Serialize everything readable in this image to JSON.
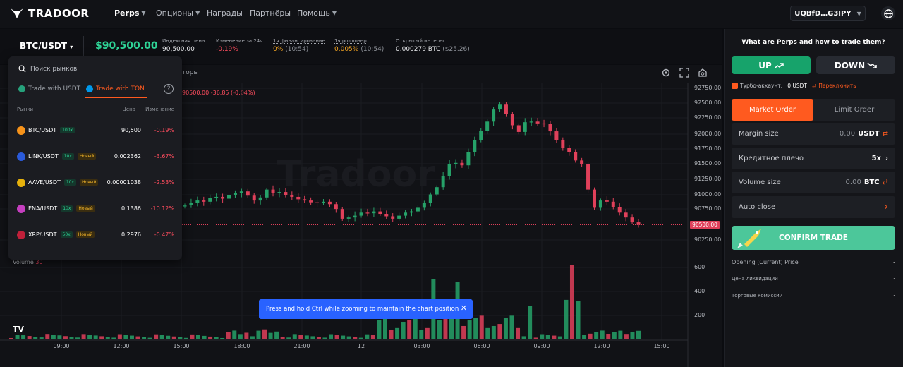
{
  "app": {
    "logo_text": "TRADOOR"
  },
  "nav": {
    "items": [
      {
        "label": "Perps",
        "has_caret": true,
        "active": true
      },
      {
        "label": "Опционы",
        "has_caret": true
      },
      {
        "label": "Награды"
      },
      {
        "label": "Партнёры"
      },
      {
        "label": "Помощь",
        "has_caret": true
      }
    ],
    "wallet": "UQBfD…G3IPY"
  },
  "ticker": {
    "pair": "BTC/USDT",
    "price": "$90,500.00",
    "stats": [
      {
        "label": "Индексная цена",
        "value": "90,500.00",
        "color": "#e8e9ec"
      },
      {
        "label": "Изменение за 24ч",
        "value": "-0.19%",
        "color": "#ff4d5e"
      },
      {
        "label": "1ч финансирование",
        "value": "0%",
        "extra": "(10:54)",
        "color": "#f5a623"
      },
      {
        "label": "1ч ролловер",
        "value": "0.005%",
        "extra": "(10:54)",
        "color": "#f5a623"
      },
      {
        "label": "Открытый интерес",
        "value": "0.000279 BTC",
        "extra": "($25.26)",
        "color": "#e8e9ec"
      }
    ]
  },
  "market_dropdown": {
    "search_placeholder": "Поиск рынков",
    "tabs": [
      "Trade with USDT",
      "Trade with TON"
    ],
    "active_tab": 1,
    "headers": {
      "market": "Рынки",
      "price": "Цена",
      "change": "Изменение"
    },
    "rows": [
      {
        "symbol": "BTC/USDT",
        "leverage": "100x",
        "new": "",
        "price": "90,500",
        "change": "-0.19%",
        "icon_color": "#f7931a"
      },
      {
        "symbol": "LINK/USDT",
        "leverage": "10x",
        "new": "Новый",
        "price": "0.002362",
        "change": "-3.67%",
        "icon_color": "#2a5ada"
      },
      {
        "symbol": "AAVE/USDT",
        "leverage": "10x",
        "new": "Новый",
        "price": "0.00001038",
        "change": "-2.53%",
        "icon_color": "#e6b10c"
      },
      {
        "symbol": "ENA/USDT",
        "leverage": "10x",
        "new": "Новый",
        "price": "0.1386",
        "change": "-10.12%",
        "icon_color": "#c63fc0"
      },
      {
        "symbol": "XRP/USDT",
        "leverage": "50x",
        "new": "Новый",
        "price": "0.2976",
        "change": "-0.47%",
        "icon_color": "#c0203a"
      }
    ]
  },
  "chart": {
    "tab_fragment": "торы",
    "ohlc_text": "90500.00  -36.85 (-0.04%)",
    "watermark": "Tradoor",
    "volume_label": "Volume",
    "volume_value": "30",
    "price_ticks": [
      "92750.00",
      "92500.00",
      "92250.00",
      "92000.00",
      "91750.00",
      "91500.00",
      "91250.00",
      "91000.00",
      "90750.00",
      "90250.00"
    ],
    "last_price_tag": "90500.00",
    "volume_ticks": [
      "600",
      "400",
      "200"
    ],
    "time_ticks": [
      "09:00",
      "12:00",
      "15:00",
      "18:00",
      "21:00",
      "12",
      "03:00",
      "06:00",
      "09:00",
      "12:00",
      "15:00"
    ],
    "toast": "Press and hold Ctrl while zooming to maintain the chart position",
    "tv_logo": "TV"
  },
  "chart_data": {
    "type": "candlestick",
    "title": "BTC/USDT",
    "price_range": [
      90100,
      92800
    ],
    "close_series": [
      90820,
      90860,
      90900,
      90880,
      90940,
      90960,
      90930,
      90990,
      91020,
      91050,
      90980,
      90900,
      90950,
      91080,
      91020,
      91040,
      90990,
      90960,
      90920,
      90900,
      90870,
      90860,
      90880,
      90840,
      90760,
      90600,
      90620,
      90650,
      90700,
      90690,
      90720,
      90680,
      90640,
      90600,
      90650,
      90700,
      90720,
      90780,
      90860,
      91000,
      91120,
      91300,
      91500,
      91520,
      91480,
      91700,
      91900,
      92050,
      92200,
      92400,
      92480,
      92330,
      92140,
      92030,
      92190,
      92200,
      92170,
      92160,
      92040,
      91890,
      91770,
      91700,
      91560,
      91500,
      91080,
      90780,
      90900,
      90880,
      90790,
      90700,
      90620,
      90540,
      90500
    ],
    "volume_range": [
      0,
      700
    ]
  },
  "panel": {
    "help_title": "What are Perps and how to trade them?",
    "up": "UP",
    "down": "DOWN",
    "turbo_label": "Турбо-аккаунт:",
    "turbo_value": "0 USDT",
    "turbo_switch": "Переключить",
    "order_tabs": [
      "Market Order",
      "Limit Order"
    ],
    "margin_label": "Margin size",
    "margin_value": "0.00",
    "margin_unit": "USDT",
    "leverage_label": "Кредитное плечо",
    "leverage_value": "5x",
    "volume_label": "Volume size",
    "volume_value": "0.00",
    "volume_unit": "BTC",
    "autoclose_label": "Auto close",
    "confirm": "CONFIRM TRADE",
    "info": [
      {
        "label": "Opening (Current) Price",
        "value": "-"
      },
      {
        "label": "Цена ликвидации",
        "value": "-"
      },
      {
        "label": "Торговые комиссии",
        "value": "-"
      }
    ]
  },
  "colors": {
    "up": "#26a269",
    "down": "#e0405a",
    "accent": "#ff5a1f",
    "green_btn": "#17a36b",
    "toast": "#2962ff"
  }
}
